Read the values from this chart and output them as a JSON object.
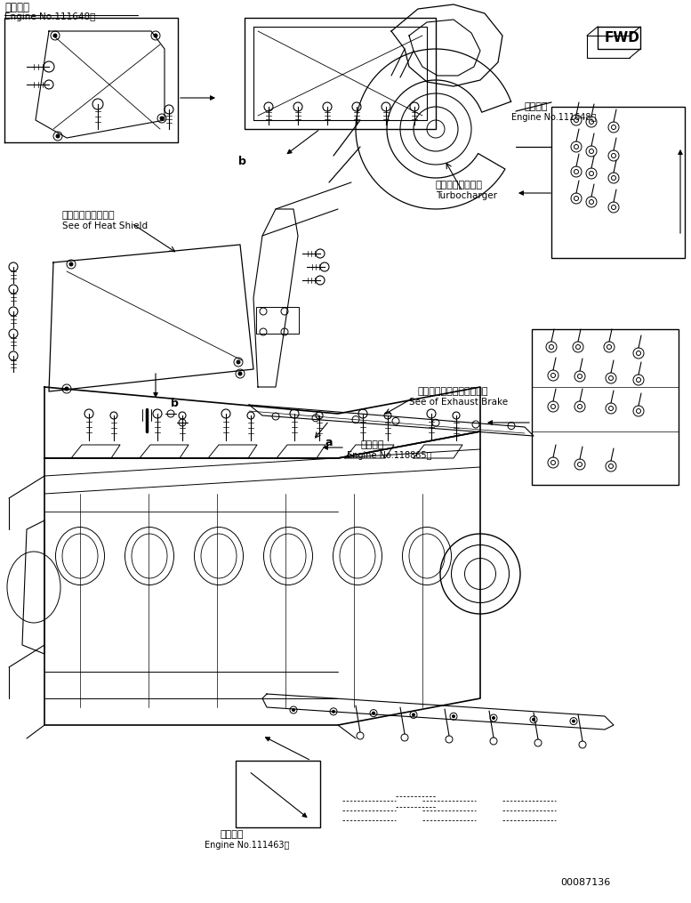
{
  "bg_color": "#ffffff",
  "line_color": "#000000",
  "fig_width": 7.77,
  "fig_height": 10.15,
  "dpi": 100,
  "labels": {
    "top_left_jp": "適用号機",
    "top_left_en": "Engine No.111648～",
    "turbocharger_jp": "ターボチャージャ",
    "turbocharger_en": "Turbocharger",
    "heat_shield_jp": "ヒートシールド参照",
    "heat_shield_en": "See of Heat Shield",
    "exhaust_brake_jp": "エキゾーストブレーキ参照",
    "exhaust_brake_en": "See of Exhaust Brake",
    "engine_no2_jp": "適用号機",
    "engine_no2_en": "Engine No.111648～",
    "engine_no3_jp": "適用号機",
    "engine_no3_en": "Engine No.118865～",
    "engine_no4_jp": "適用号機",
    "engine_no4_en": "Engine No.111463～",
    "part_number": "00087136",
    "fwd": "FWD",
    "label_a": "a",
    "label_b1": "b",
    "label_b2": "b"
  },
  "coords": {
    "img_xlim": [
      0,
      777
    ],
    "img_ylim": [
      0,
      1015
    ]
  }
}
